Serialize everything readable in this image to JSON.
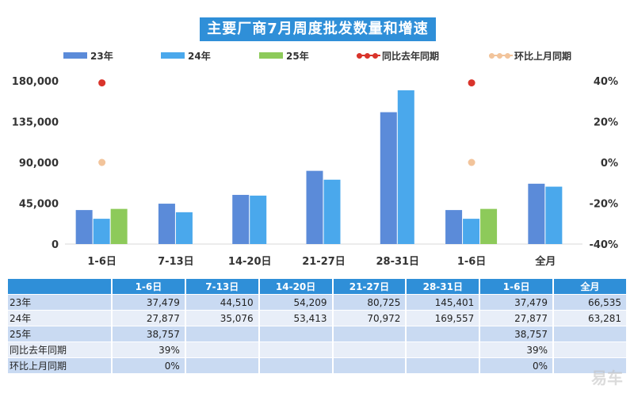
{
  "chart_data": {
    "type": "bar",
    "title": "主要厂商7月周度批发数量和增速",
    "categories": [
      "1-6日",
      "7-13日",
      "14-20日",
      "21-27日",
      "28-31日",
      "1-6日",
      "全月"
    ],
    "series": [
      {
        "name": "23年",
        "type": "bar",
        "color": "#5b8bd9",
        "values": [
          37479,
          44510,
          54209,
          80725,
          145401,
          37479,
          66535
        ]
      },
      {
        "name": "24年",
        "type": "bar",
        "color": "#4aa8ec",
        "values": [
          27877,
          35076,
          53413,
          70972,
          169557,
          27877,
          63281
        ]
      },
      {
        "name": "25年",
        "type": "bar",
        "color": "#8dca5a",
        "values": [
          38757,
          null,
          null,
          null,
          null,
          38757,
          null
        ]
      },
      {
        "name": "同比去年同期",
        "type": "scatter",
        "axis": "right",
        "color": "#d9342b",
        "values": [
          39,
          null,
          null,
          null,
          null,
          39,
          null
        ]
      },
      {
        "name": "环比上月同期",
        "type": "scatter",
        "axis": "right",
        "color": "#f2c49b",
        "values": [
          0,
          null,
          null,
          null,
          null,
          0,
          null
        ]
      }
    ],
    "ylim": [
      0,
      180000
    ],
    "yticks": [
      "0",
      "45,000",
      "90,000",
      "135,000",
      "180,000"
    ],
    "y2lim": [
      -40,
      40
    ],
    "y2ticks": [
      "-40%",
      "-20%",
      "0%",
      "20%",
      "40%"
    ],
    "legend": "top"
  },
  "table": {
    "headers": [
      "",
      "1-6日",
      "7-13日",
      "14-20日",
      "21-27日",
      "28-31日",
      "1-6日",
      "全月"
    ],
    "rows": [
      {
        "label": "23年",
        "cells": [
          "37,479",
          "44,510",
          "54,209",
          "80,725",
          "145,401",
          "37,479",
          "66,535"
        ]
      },
      {
        "label": "24年",
        "cells": [
          "27,877",
          "35,076",
          "53,413",
          "70,972",
          "169,557",
          "27,877",
          "63,281"
        ]
      },
      {
        "label": "25年",
        "cells": [
          "38,757",
          "",
          "",
          "",
          "",
          "38,757",
          ""
        ]
      },
      {
        "label": "同比去年同期",
        "cells": [
          "39%",
          "",
          "",
          "",
          "",
          "39%",
          ""
        ]
      },
      {
        "label": "环比上月同期",
        "cells": [
          "0%",
          "",
          "",
          "",
          "",
          "0%",
          ""
        ]
      }
    ]
  },
  "watermark": "易车"
}
